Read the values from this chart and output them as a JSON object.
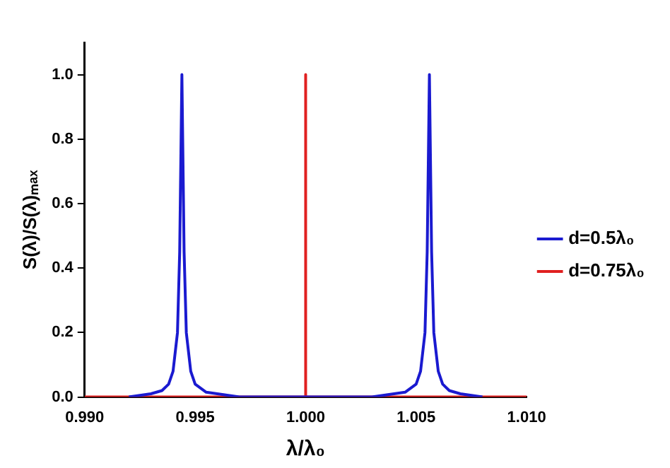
{
  "chart_data": {
    "type": "line",
    "xlabel": "λ/λ₀",
    "ylabel": "S(λ)/S(λ)ₘₐₓ",
    "xlim": [
      0.99,
      1.01
    ],
    "ylim": [
      0,
      1.1
    ],
    "xticks": [
      {
        "value": 0.99,
        "label": "0.990"
      },
      {
        "value": 0.995,
        "label": "0.995"
      },
      {
        "value": 1.0,
        "label": "1.000"
      },
      {
        "value": 1.005,
        "label": "1.005"
      },
      {
        "value": 1.01,
        "label": "1.010"
      }
    ],
    "yticks": [
      {
        "value": 0,
        "label": "0.0"
      },
      {
        "value": 0.2,
        "label": "0.2"
      },
      {
        "value": 0.4,
        "label": "0.4"
      },
      {
        "value": 0.6,
        "label": "0.6"
      },
      {
        "value": 0.8,
        "label": "0.8"
      },
      {
        "value": 1.0,
        "label": "1.0"
      }
    ],
    "grid": false,
    "legend": "right",
    "marker": "none",
    "line_style": "solid",
    "series": [
      {
        "name": "d=0.5λ₀",
        "color": "#1a1ad0",
        "x": [
          0.992,
          0.993,
          0.9935,
          0.9938,
          0.994,
          0.9942,
          0.9943,
          0.9944,
          0.9945,
          0.9946,
          0.9948,
          0.995,
          0.9955,
          0.996,
          0.997,
          1.003,
          1.004,
          1.0045,
          1.005,
          1.0052,
          1.0054,
          1.0055,
          1.0056,
          1.0057,
          1.0058,
          1.006,
          1.0062,
          1.0065,
          1.007,
          1.008
        ],
        "values": [
          0,
          0.01,
          0.02,
          0.04,
          0.08,
          0.2,
          0.45,
          1.0,
          0.45,
          0.2,
          0.08,
          0.04,
          0.015,
          0.01,
          0,
          0,
          0.01,
          0.015,
          0.04,
          0.08,
          0.2,
          0.45,
          1.0,
          0.45,
          0.2,
          0.08,
          0.04,
          0.02,
          0.01,
          0
        ]
      },
      {
        "name": "d=0.75λ₀",
        "color": "#e02020",
        "x": [
          0.99,
          1.0,
          1.0,
          1.0,
          1.01
        ],
        "values": [
          0,
          0,
          1.0,
          0,
          0
        ]
      }
    ]
  }
}
